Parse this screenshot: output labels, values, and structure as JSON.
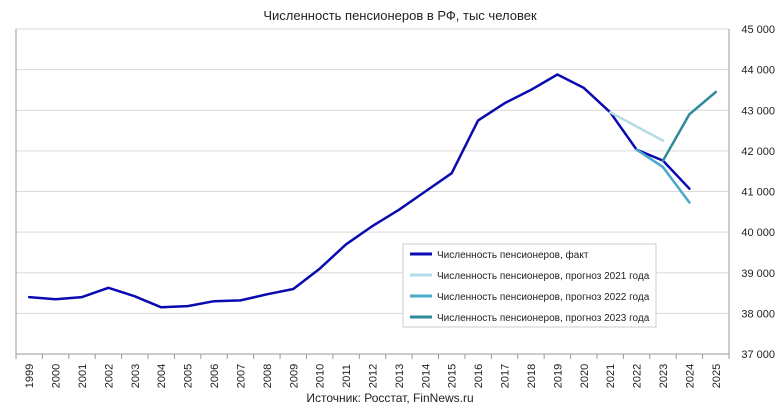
{
  "chart_data": {
    "type": "line",
    "title": "Численность пенсионеров в РФ, тыс человек",
    "source": "Источник: Росстат, FinNews.ru",
    "ylim": [
      37000,
      45000
    ],
    "y_ticks": [
      37000,
      38000,
      39000,
      40000,
      41000,
      42000,
      43000,
      44000,
      45000
    ],
    "y_tick_labels": [
      "37 000",
      "38 000",
      "39 000",
      "40 000",
      "41 000",
      "42 000",
      "43 000",
      "44 000",
      "45 000"
    ],
    "categories": [
      "1999",
      "2000",
      "2001",
      "2002",
      "2003",
      "2004",
      "2005",
      "2006",
      "2007",
      "2008",
      "2009",
      "2010",
      "2011",
      "2012",
      "2013",
      "2014",
      "2015",
      "2016",
      "2017",
      "2018",
      "2019",
      "2020",
      "2021",
      "2022",
      "2023",
      "2024",
      "2025"
    ],
    "grid": "horizontal",
    "legend_position": "right",
    "series": [
      {
        "name": "Численность  пенсионеров,  факт",
        "color": "#0a0ab0",
        "width": 2.5,
        "points": [
          [
            "1999",
            38400
          ],
          [
            "2000",
            38350
          ],
          [
            "2001",
            38400
          ],
          [
            "2002",
            38630
          ],
          [
            "2003",
            38420
          ],
          [
            "2004",
            38150
          ],
          [
            "2005",
            38180
          ],
          [
            "2006",
            38300
          ],
          [
            "2007",
            38320
          ],
          [
            "2008",
            38470
          ],
          [
            "2009",
            38600
          ],
          [
            "2010",
            39100
          ],
          [
            "2011",
            39700
          ],
          [
            "2012",
            40150
          ],
          [
            "2013",
            40550
          ],
          [
            "2014",
            41000
          ],
          [
            "2015",
            41450
          ],
          [
            "2016",
            42750
          ],
          [
            "2017",
            43170
          ],
          [
            "2018",
            43500
          ],
          [
            "2019",
            43880
          ],
          [
            "2020",
            43550
          ],
          [
            "2021",
            42950
          ],
          [
            "2022",
            42030
          ],
          [
            "2023",
            41760
          ],
          [
            "2024",
            41070
          ]
        ]
      },
      {
        "name": "Численность  пенсионеров,  прогноз 2021 года",
        "color": "#b3dbe8",
        "width": 2.5,
        "points": [
          [
            "2021",
            42950
          ],
          [
            "2022",
            42600
          ],
          [
            "2023",
            42250
          ]
        ]
      },
      {
        "name": "Численность  пенсионеров,  прогноз 2022 года",
        "color": "#4aa9c9",
        "width": 2.5,
        "points": [
          [
            "2022",
            42030
          ],
          [
            "2023",
            41600
          ],
          [
            "2024",
            40730
          ]
        ]
      },
      {
        "name": "Численность  пенсионеров,  прогноз 2023 года",
        "color": "#2f8a9a",
        "width": 2.5,
        "points": [
          [
            "2023",
            41760
          ],
          [
            "2024",
            42900
          ],
          [
            "2025",
            43450
          ]
        ]
      }
    ]
  }
}
